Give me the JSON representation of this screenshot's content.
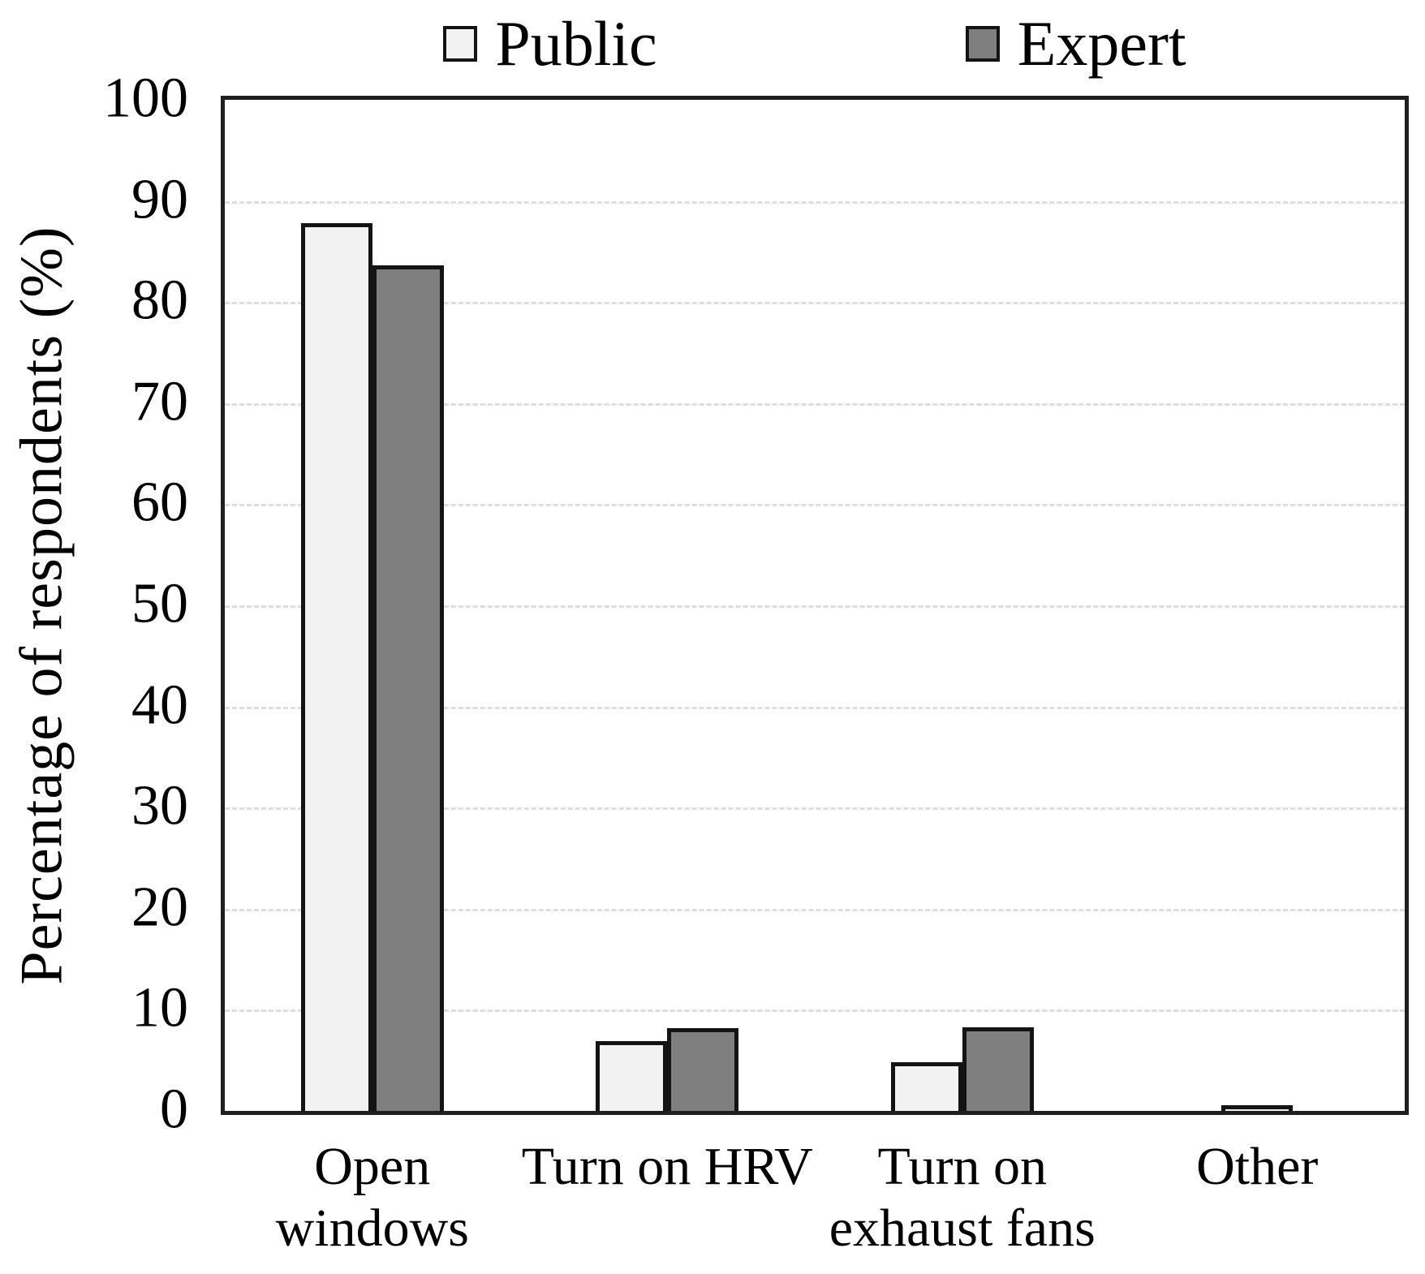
{
  "chart_data": {
    "type": "bar",
    "title": "",
    "ylabel": "Percentage of respondents (%)",
    "xlabel": "",
    "ylim": [
      0,
      100
    ],
    "yticks": [
      0,
      10,
      20,
      30,
      40,
      50,
      60,
      70,
      80,
      90,
      100
    ],
    "grid": true,
    "gridline_color": "#dedede",
    "legend_position": "top",
    "categories": [
      "Open windows",
      "Turn on HRV",
      "Turn on exhaust fans",
      "Other"
    ],
    "category_label_lines": [
      [
        "Open",
        "windows"
      ],
      [
        "Turn on HRV"
      ],
      [
        "Turn on",
        "exhaust fans"
      ],
      [
        "Other"
      ]
    ],
    "series": [
      {
        "name": "Public",
        "color": "#f2f2f2",
        "border_color": "#141414",
        "values": [
          87.8,
          6.9,
          4.8,
          0.6
        ]
      },
      {
        "name": "Expert",
        "color": "#7f7f7f",
        "border_color": "#141414",
        "values": [
          83.6,
          8.2,
          8.3,
          0
        ]
      }
    ]
  },
  "colors": {
    "axis_border": "#1f1f1f",
    "text": "#000000",
    "background": "#ffffff"
  }
}
